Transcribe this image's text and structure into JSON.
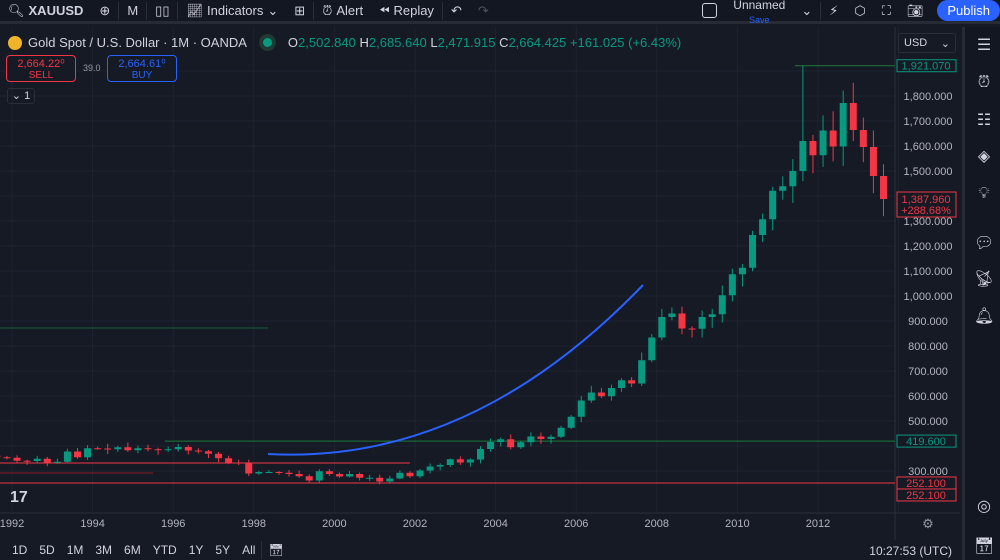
{
  "toolbar": {
    "symbol": "XAUUSD",
    "interval": "M",
    "indicators_label": "Indicators",
    "alert_label": "Alert",
    "replay_label": "Replay",
    "layout_name": "Unnamed",
    "save_label": "Save",
    "publish_label": "Publish"
  },
  "legend": {
    "title": "Gold Spot / U.S. Dollar · 1M · OANDA",
    "o_label": "O",
    "o": "2,502.840",
    "h_label": "H",
    "h": "2,685.640",
    "l_label": "L",
    "l": "2,471.915",
    "c_label": "C",
    "c": "2,664.425",
    "change": "+161.025 (+6.43%)",
    "sell_price": "2,664.22⁰",
    "sell_label": "SELL",
    "spread": "39.0",
    "buy_price": "2,664.61⁰",
    "buy_label": "BUY",
    "collapse_count": "1"
  },
  "price_axis": {
    "currency": "USD",
    "ticks": [
      "1,800.000",
      "1,700.000",
      "1,600.000",
      "1,500.000",
      "1,300.000",
      "1,200.000",
      "1,100.000",
      "1,000.000",
      "900.000",
      "800.000",
      "700.000",
      "600.000",
      "500.000",
      "300.000"
    ],
    "labels": [
      {
        "text": "1,921.070",
        "price": 1921.07,
        "color": "#089981"
      },
      {
        "text": "419.600",
        "price": 419.6,
        "color": "#089981"
      },
      {
        "text": "252.100",
        "price": 252.1,
        "color": "#f23645"
      },
      {
        "text": "252.100",
        "price": 252.1,
        "color": "#f23645"
      }
    ],
    "last_price": "1,387.960",
    "last_change": "+288.68%"
  },
  "time_axis": {
    "ticks": [
      "1992",
      "1994",
      "1996",
      "1998",
      "2000",
      "2002",
      "2004",
      "2006",
      "2008",
      "2010",
      "2012"
    ]
  },
  "bottombar": {
    "ranges": [
      "1D",
      "5D",
      "1M",
      "3M",
      "6M",
      "YTD",
      "1Y",
      "5Y",
      "All"
    ],
    "clock": "10:27:53 (UTC)"
  },
  "colors": {
    "up": "#089981",
    "down": "#f23645",
    "accent": "#2962ff",
    "background": "#161a25"
  },
  "chart_data": {
    "type": "candlestick",
    "start": "1991-Q3",
    "period": "quarter",
    "closes": [
      355,
      353,
      341,
      340,
      349,
      333,
      337,
      378,
      355,
      391,
      390,
      387,
      395,
      383,
      391,
      387,
      384,
      387,
      396,
      382,
      379,
      369,
      351,
      334,
      332,
      290,
      296,
      296,
      293,
      288,
      279,
      262,
      299,
      288,
      278,
      288,
      273,
      273,
      258,
      270,
      293,
      279,
      302,
      318,
      324,
      347,
      334,
      346,
      388,
      416,
      427,
      395,
      415,
      438,
      428,
      437,
      473,
      517,
      582,
      614,
      599,
      632,
      663,
      650,
      743,
      834,
      916,
      930,
      870,
      869,
      916,
      927,
      1003,
      1087,
      1113,
      1244,
      1307,
      1421,
      1439,
      1500,
      1620,
      1563,
      1662,
      1598,
      1772,
      1664,
      1596,
      1480,
      1388
    ],
    "ylim": [
      250,
      1960
    ],
    "xlim": [
      1991.7,
      2014.0
    ],
    "horizontal_levels": [
      1921.07,
      419.6,
      252.1
    ]
  }
}
